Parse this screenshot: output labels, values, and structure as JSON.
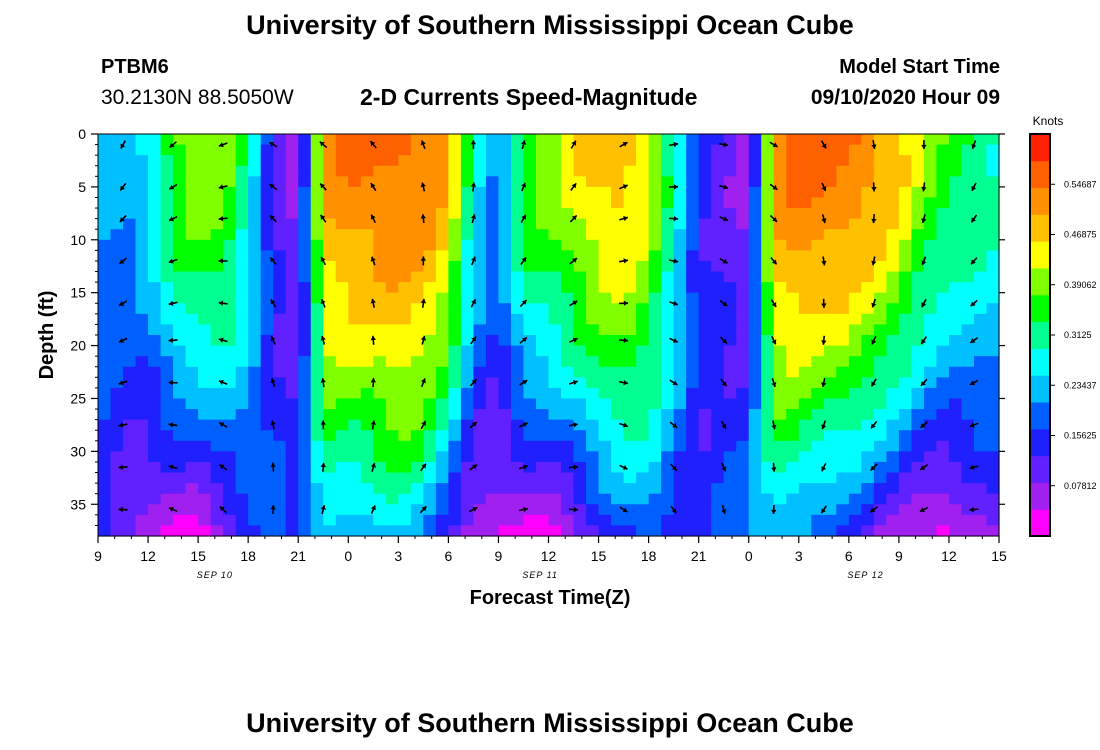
{
  "header": {
    "title": "University of Southern Mississippi Ocean Cube",
    "station_name": "PTBM6",
    "station_coords": "30.2130N 88.5050W",
    "plot_title": "2-D Currents Speed-Magnitude",
    "model_start_label": "Model Start Time",
    "model_start_value": "09/10/2020 Hour 09"
  },
  "footer": {
    "title": "University of Southern Mississippi Ocean Cube"
  },
  "chart_data": {
    "type": "heatmap",
    "title": "2-D Currents Speed-Magnitude",
    "xlabel": "Forecast Time(Z)",
    "ylabel": "Depth (ft)",
    "x_ticks": [
      "9",
      "12",
      "15",
      "18",
      "21",
      "0",
      "3",
      "6",
      "9",
      "12",
      "15",
      "18",
      "21",
      "0",
      "3",
      "6",
      "9",
      "12",
      "15"
    ],
    "x_hours": [
      0,
      3,
      6,
      9,
      12,
      15,
      18,
      21,
      24,
      27,
      30,
      33,
      36,
      39,
      42,
      45,
      48,
      51,
      54
    ],
    "xlim": [
      0,
      54
    ],
    "date_labels": [
      {
        "text": "SEP 10",
        "hour": 7
      },
      {
        "text": "SEP 11",
        "hour": 26.5
      },
      {
        "text": "SEP 12",
        "hour": 46
      }
    ],
    "y_ticks": [
      "0",
      "5",
      "10",
      "15",
      "20",
      "25",
      "30",
      "35"
    ],
    "y_values": [
      0,
      5,
      10,
      15,
      20,
      25,
      30,
      35
    ],
    "ylim": [
      0,
      38
    ],
    "colorbar": {
      "label": "Knots",
      "min": 0,
      "max": 0.625,
      "tick_labels": [
        "0.07812",
        "0.15625",
        "0.23437",
        "0.3125",
        "0.39062",
        "0.46875",
        "0.54687"
      ],
      "tick_values": [
        0.078125,
        0.15625,
        0.234375,
        0.3125,
        0.390625,
        0.46875,
        0.546875
      ]
    },
    "palette": [
      "#ff00ff",
      "#a020f0",
      "#6020ff",
      "#2020ff",
      "#0060ff",
      "#00c0ff",
      "#00ffff",
      "#00ff90",
      "#00ff00",
      "#80ff00",
      "#ffff00",
      "#ffc000",
      "#ff9000",
      "#ff6000",
      "#ff2000"
    ],
    "speed_profile_hours": [
      0,
      1.5,
      3,
      4.5,
      6,
      7.5,
      9,
      10.5,
      12,
      13.5,
      15,
      16.5,
      18,
      19.5,
      21,
      22.5,
      24,
      25.5,
      27,
      28.5,
      30,
      31.5,
      33,
      34.5,
      36,
      37.5,
      39,
      40.5,
      42,
      43.5,
      45,
      46.5,
      48,
      49.5,
      51,
      52.5,
      54
    ],
    "speed_surface": [
      0.23,
      0.23,
      0.25,
      0.38,
      0.42,
      0.4,
      0.3,
      0.12,
      0.05,
      0.5,
      0.55,
      0.55,
      0.56,
      0.55,
      0.5,
      0.28,
      0.2,
      0.38,
      0.4,
      0.45,
      0.48,
      0.5,
      0.42,
      0.3,
      0.15,
      0.1,
      0.06,
      0.52,
      0.56,
      0.56,
      0.55,
      0.52,
      0.48,
      0.4,
      0.35,
      0.33,
      0.3
    ],
    "speed_bottom": [
      0.14,
      0.08,
      0.05,
      0.03,
      0.02,
      0.08,
      0.14,
      0.18,
      0.18,
      0.25,
      0.2,
      0.22,
      0.26,
      0.22,
      0.12,
      0.04,
      0.04,
      0.03,
      0.03,
      0.05,
      0.12,
      0.16,
      0.2,
      0.15,
      0.12,
      0.18,
      0.22,
      0.24,
      0.2,
      0.16,
      0.14,
      0.1,
      0.05,
      0.02,
      0.02,
      0.06,
      0.1
    ],
    "arrow_hours": [
      1.5,
      4.5,
      7.5,
      10.5,
      13.5,
      16.5,
      19.5,
      22.5,
      25.5,
      28.5,
      31.5,
      34.5,
      37.5,
      40.5,
      43.5,
      46.5,
      49.5,
      52.5
    ],
    "arrow_depths": [
      1,
      5,
      8,
      12,
      16,
      19.5,
      23.5,
      27.5,
      31.5,
      35.5
    ],
    "arrow_directions_deg": [
      210,
      230,
      250,
      300,
      310,
      320,
      340,
      0,
      15,
      30,
      60,
      80,
      100,
      120,
      150,
      170,
      180,
      200
    ]
  }
}
